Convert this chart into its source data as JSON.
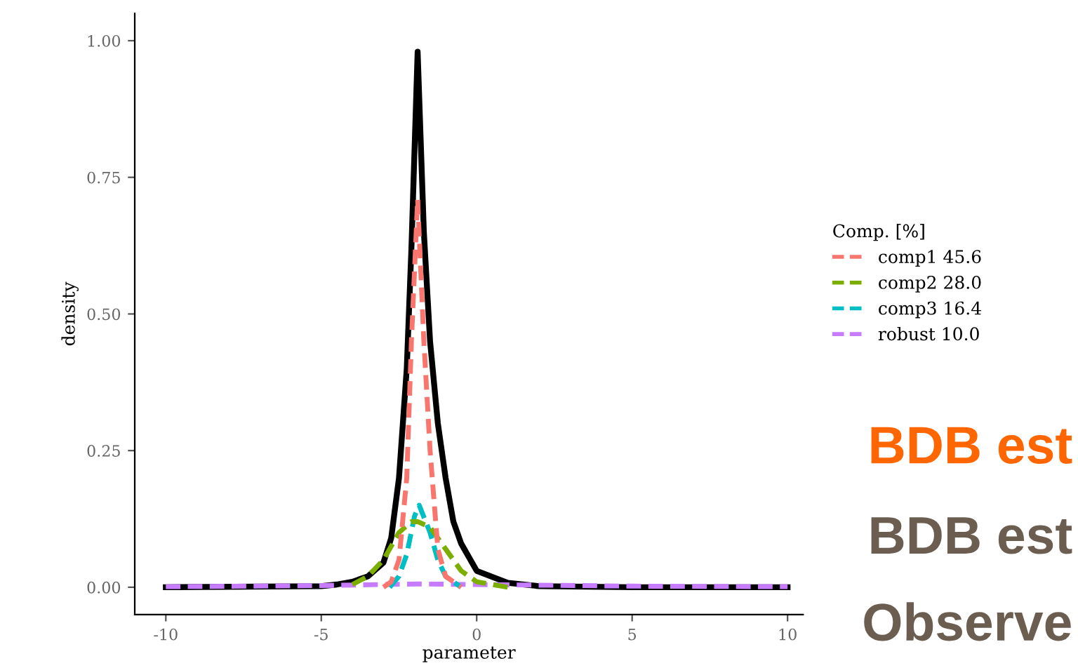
{
  "chart_data": {
    "type": "line",
    "xlabel": "parameter",
    "ylabel": "density",
    "legend_title": "Comp. [%]",
    "legend": "right",
    "xlim": [
      -11,
      10.5
    ],
    "xticks": [
      {
        "value": -10,
        "label": "-10"
      },
      {
        "value": -5,
        "label": "-5"
      },
      0,
      5,
      10
    ],
    "ylim": [
      -0.05,
      1.05
    ],
    "yticks": [
      {
        "value": 0,
        "label": "0.00"
      },
      {
        "value": 0.25,
        "label": "0.25"
      },
      {
        "value": 0.5,
        "label": "0.50"
      },
      {
        "value": 0.75,
        "label": "0.75"
      },
      {
        "value": 1,
        "label": "1.00"
      }
    ],
    "grid": false,
    "series": [
      {
        "color": "#000000",
        "line_style": "solid",
        "x": [
          -10,
          -5,
          -4.5,
          -4,
          -3.5,
          -3,
          -2.75,
          -2.5,
          -2.25,
          -2.1,
          -1.9,
          -1.7,
          -1.5,
          -1.25,
          -1,
          -0.75,
          -0.5,
          0,
          1,
          2,
          5,
          10
        ],
        "values": [
          0,
          0.002,
          0.005,
          0.01,
          0.02,
          0.045,
          0.09,
          0.2,
          0.4,
          0.62,
          0.98,
          0.65,
          0.45,
          0.3,
          0.2,
          0.12,
          0.08,
          0.03,
          0.008,
          0.002,
          0,
          0
        ]
      },
      {
        "name": "comp1 45.6",
        "color": "#f8766d",
        "line_style": "dashed",
        "x": [
          -3,
          -2.75,
          -2.5,
          -2.25,
          -2.1,
          -1.9,
          -1.7,
          -1.5,
          -1.25,
          -1,
          -0.5
        ],
        "values": [
          0,
          0.01,
          0.05,
          0.2,
          0.45,
          0.71,
          0.45,
          0.25,
          0.07,
          0.02,
          0
        ]
      },
      {
        "name": "comp2 28.0",
        "color": "#7cae00",
        "line_style": "dashed",
        "x": [
          -4,
          -3.5,
          -3,
          -2.5,
          -2.1,
          -1.9,
          -1.5,
          -1,
          -0.5,
          0,
          1
        ],
        "values": [
          0.005,
          0.02,
          0.05,
          0.1,
          0.12,
          0.12,
          0.11,
          0.07,
          0.03,
          0.01,
          0
        ]
      },
      {
        "name": "comp3 16.4",
        "color": "#00bfc4",
        "line_style": "dashed",
        "x": [
          -2.8,
          -2.5,
          -2.25,
          -2,
          -1.85,
          -1.5,
          -1.25,
          -1,
          -0.5
        ],
        "values": [
          0,
          0.02,
          0.06,
          0.13,
          0.15,
          0.1,
          0.05,
          0.02,
          0
        ]
      },
      {
        "name": "robust 10.0",
        "color": "#c77cff",
        "line_style": "dashed",
        "x": [
          -10,
          -5,
          -3,
          -1.9,
          0,
          5,
          10
        ],
        "values": [
          0.001,
          0.003,
          0.005,
          0.006,
          0.005,
          0.002,
          0.001
        ]
      }
    ],
    "annotations": [
      "BDB est",
      "BDB est",
      "Observe"
    ]
  }
}
